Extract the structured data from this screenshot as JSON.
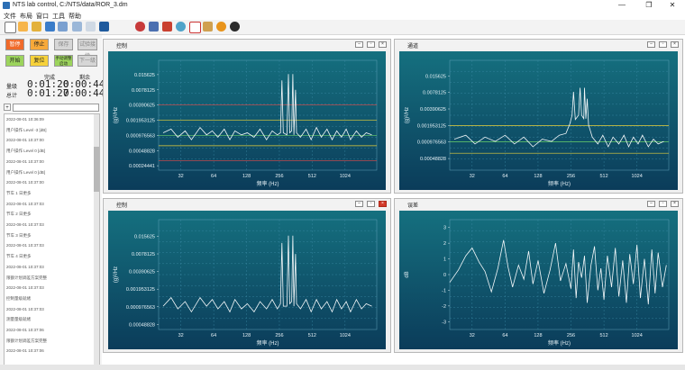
{
  "window": {
    "title": "NTS lab control, C:/NTS/data/ROR_3.dm",
    "buttons": [
      "—",
      "❐",
      "✕"
    ]
  },
  "menu": [
    "文件",
    "布局",
    "窗口",
    "工具",
    "帮助"
  ],
  "toolbar": {
    "icons": [
      "new-file-icon",
      "grid-icon",
      "open-folder-icon",
      "save-icon",
      "export-icon",
      "edit-icon",
      "signal-icon",
      "waveform-icon",
      "car-icon",
      "peak-icon",
      "hammer-icon",
      "zoom-icon",
      "off-icon",
      "profile-icon",
      "headset-icon",
      "stop-icon"
    ],
    "colors": {
      "accent": "#2c6fb5",
      "plot_top": "#15707f",
      "plot_bottom": "#0b3c5a"
    }
  },
  "controls": {
    "stop_label": "暂停",
    "exit_label": "停止",
    "save_label": "保存",
    "cont_label": "试验接续",
    "start_label": "开始",
    "reset_label": "复位",
    "manual_label": "手动调整启动",
    "next_label": "下一级",
    "done_label": "完成",
    "remain_label": "剩余",
    "level_label": "量级",
    "total_label": "总计",
    "level_done": "0:01:20",
    "level_remain": "0:00:44",
    "total_done": "0:01:27",
    "total_remain": "0:00:44"
  },
  "log": [
    {
      "time": "2022-08-01 10:36:09",
      "text": ""
    },
    {
      "time": "",
      "text": "用户操作 Level            -3 [dB]"
    },
    {
      "time": "2022-08-01 10:37:00",
      "text": ""
    },
    {
      "time": "",
      "text": "用户操作 Level            0 [dB]"
    },
    {
      "time": "2022-08-01 10:37:00",
      "text": ""
    },
    {
      "time": "",
      "text": "用户操作 Level            0 [dB]"
    },
    {
      "time": "2022-08-01 10:37:00",
      "text": ""
    },
    {
      "time": "",
      "text": "节车 1 日更多"
    },
    {
      "time": "2022-08-01 10:37:03",
      "text": ""
    },
    {
      "time": "",
      "text": "节车 2 日更多"
    },
    {
      "time": "2022-08-01 10:37:03",
      "text": ""
    },
    {
      "time": "",
      "text": "节车 3 日更多"
    },
    {
      "time": "2022-08-01 10:37:03",
      "text": ""
    },
    {
      "time": "",
      "text": "节车 4 日更多"
    },
    {
      "time": "2022-08-01 10:37:03",
      "text": ""
    },
    {
      "time": "",
      "text": "限额计划调差方案完整"
    },
    {
      "time": "2022-08-01 10:37:03",
      "text": ""
    },
    {
      "time": "",
      "text": "控制量级就绪"
    },
    {
      "time": "2022-08-01 10:37:03",
      "text": ""
    },
    {
      "time": "",
      "text": "测量量级就绪"
    },
    {
      "time": "2022-08-01 10:37:06",
      "text": ""
    },
    {
      "time": "",
      "text": "限额计划调差方案完整"
    },
    {
      "time": "2022-08-01 10:37:06",
      "text": ""
    }
  ],
  "panels": {
    "p1": {
      "title": "控制",
      "ylabel": "(g)²/Hz",
      "xlabel": "频率 (Hz)"
    },
    "p2": {
      "title": "通道",
      "ylabel": "(g)²/Hz",
      "xlabel": "频率 (Hz)"
    },
    "p3": {
      "title": "控制",
      "ylabel": "(g)²/Hz",
      "xlabel": "频率 (Hz)"
    },
    "p4": {
      "title": "误差",
      "ylabel": "dB",
      "xlabel": "频率 (Hz)"
    }
  },
  "chart_data": [
    {
      "type": "line",
      "title": "控制",
      "xlabel": "频率 (Hz)",
      "ylabel": "(g)²/Hz",
      "x_ticks": [
        "32",
        "64",
        "128",
        "256",
        "512",
        "1024"
      ],
      "x_tick_values": [
        32,
        64,
        128,
        256,
        512,
        1024
      ],
      "y_ticks": [
        "0.015625",
        "0.0078125",
        "0.00390625",
        "0.001953125",
        "0.000976563",
        "0.00048828",
        "0.00024441"
      ],
      "y_tick_values": [
        0.015625,
        0.0078125,
        0.00390625,
        0.001953125,
        0.000976563,
        0.00048828,
        0.00024441
      ],
      "xlim": [
        20,
        2000
      ],
      "ylim": [
        0.0002,
        0.03
      ],
      "xscale": "log",
      "yscale": "log",
      "lines": {
        "red": [
          0.0039,
          0.00031
        ],
        "yellow": [
          0.00195,
          0.00061
        ],
        "green": [
          0.00098
        ]
      },
      "peaks_x": [
        270,
        310,
        340,
        360
      ],
      "series": [
        {
          "values": [
            [
              22,
              0.0011
            ],
            [
              26,
              0.0013
            ],
            [
              30,
              0.0009
            ],
            [
              35,
              0.0012
            ],
            [
              40,
              0.0008
            ],
            [
              48,
              0.0014
            ],
            [
              55,
              0.001
            ],
            [
              62,
              0.0012
            ],
            [
              70,
              0.0009
            ],
            [
              80,
              0.0013
            ],
            [
              90,
              0.0008
            ],
            [
              100,
              0.0012
            ],
            [
              115,
              0.001
            ],
            [
              130,
              0.0011
            ],
            [
              150,
              0.0009
            ],
            [
              170,
              0.0013
            ],
            [
              195,
              0.0008
            ],
            [
              220,
              0.0012
            ],
            [
              245,
              0.001
            ],
            [
              262,
              0.0011
            ],
            [
              270,
              0.012
            ],
            [
              278,
              0.0011
            ],
            [
              300,
              0.001
            ],
            [
              310,
              0.016
            ],
            [
              318,
              0.0011
            ],
            [
              332,
              0.0012
            ],
            [
              340,
              0.016
            ],
            [
              348,
              0.001
            ],
            [
              360,
              0.0078
            ],
            [
              368,
              0.0011
            ],
            [
              400,
              0.0009
            ],
            [
              450,
              0.0013
            ],
            [
              500,
              0.0008
            ],
            [
              560,
              0.0014
            ],
            [
              620,
              0.0009
            ],
            [
              700,
              0.0013
            ],
            [
              780,
              0.0008
            ],
            [
              860,
              0.0012
            ],
            [
              950,
              0.0009
            ],
            [
              1050,
              0.0013
            ],
            [
              1150,
              0.0008
            ],
            [
              1300,
              0.0012
            ],
            [
              1450,
              0.0009
            ],
            [
              1600,
              0.0011
            ],
            [
              1800,
              0.001
            ]
          ]
        }
      ]
    },
    {
      "type": "line",
      "title": "通道",
      "xlabel": "频率 (Hz)",
      "ylabel": "(g)²/Hz",
      "x_ticks": [
        "32",
        "64",
        "128",
        "256",
        "512",
        "1024"
      ],
      "x_tick_values": [
        32,
        64,
        128,
        256,
        512,
        1024
      ],
      "y_ticks": [
        "0.015625",
        "0.0078125",
        "0.00390625",
        "0.001953125",
        "0.000976563",
        "0.00048828"
      ],
      "y_tick_values": [
        0.015625,
        0.0078125,
        0.00390625,
        0.001953125,
        0.000976563,
        0.00048828
      ],
      "xlim": [
        20,
        2000
      ],
      "ylim": [
        0.0003,
        0.03
      ],
      "xscale": "log",
      "yscale": "log",
      "lines": {
        "yellow": [
          0.00195,
          0.00061
        ],
        "green": [
          0.00098
        ]
      },
      "series": [
        {
          "values": [
            [
              22,
              0.0011
            ],
            [
              28,
              0.0013
            ],
            [
              34,
              0.0009
            ],
            [
              42,
              0.0012
            ],
            [
              52,
              0.001
            ],
            [
              64,
              0.0013
            ],
            [
              78,
              0.0009
            ],
            [
              95,
              0.0012
            ],
            [
              115,
              0.0008
            ],
            [
              140,
              0.0011
            ],
            [
              170,
              0.001
            ],
            [
              200,
              0.0013
            ],
            [
              230,
              0.0014
            ],
            [
              250,
              0.0021
            ],
            [
              262,
              0.003
            ],
            [
              270,
              0.008
            ],
            [
              280,
              0.0025
            ],
            [
              300,
              0.003
            ],
            [
              310,
              0.0095
            ],
            [
              320,
              0.003
            ],
            [
              335,
              0.0026
            ],
            [
              340,
              0.0095
            ],
            [
              350,
              0.0026
            ],
            [
              360,
              0.006
            ],
            [
              370,
              0.002
            ],
            [
              400,
              0.0012
            ],
            [
              450,
              0.0009
            ],
            [
              500,
              0.0013
            ],
            [
              560,
              0.0008
            ],
            [
              620,
              0.0012
            ],
            [
              700,
              0.0009
            ],
            [
              780,
              0.0013
            ],
            [
              860,
              0.0008
            ],
            [
              950,
              0.0012
            ],
            [
              1050,
              0.0009
            ],
            [
              1150,
              0.0013
            ],
            [
              1300,
              0.0008
            ],
            [
              1450,
              0.0011
            ],
            [
              1600,
              0.0009
            ],
            [
              1800,
              0.001
            ]
          ]
        }
      ]
    },
    {
      "type": "line",
      "title": "控制",
      "xlabel": "频率 (Hz)",
      "ylabel": "(g)²/Hz",
      "x_ticks": [
        "32",
        "64",
        "128",
        "256",
        "512",
        "1024"
      ],
      "x_tick_values": [
        32,
        64,
        128,
        256,
        512,
        1024
      ],
      "y_ticks": [
        "0.015625",
        "0.0078125",
        "0.00390625",
        "0.001953125",
        "0.000976563",
        "0.00048828"
      ],
      "y_tick_values": [
        0.015625,
        0.0078125,
        0.00390625,
        0.001953125,
        0.000976563,
        0.00048828
      ],
      "xlim": [
        20,
        2000
      ],
      "ylim": [
        0.0004,
        0.03
      ],
      "xscale": "log",
      "yscale": "log",
      "lines": {},
      "series": [
        {
          "values": [
            [
              22,
              0.001
            ],
            [
              26,
              0.0014
            ],
            [
              30,
              0.0009
            ],
            [
              35,
              0.0012
            ],
            [
              40,
              0.0008
            ],
            [
              48,
              0.0014
            ],
            [
              55,
              0.001
            ],
            [
              62,
              0.0013
            ],
            [
              70,
              0.0009
            ],
            [
              80,
              0.0012
            ],
            [
              90,
              0.0008
            ],
            [
              100,
              0.0013
            ],
            [
              115,
              0.0009
            ],
            [
              130,
              0.0011
            ],
            [
              150,
              0.0008
            ],
            [
              170,
              0.0012
            ],
            [
              195,
              0.0009
            ],
            [
              220,
              0.0013
            ],
            [
              245,
              0.0009
            ],
            [
              262,
              0.0011
            ],
            [
              270,
              0.012
            ],
            [
              278,
              0.001
            ],
            [
              300,
              0.001
            ],
            [
              310,
              0.016
            ],
            [
              318,
              0.0011
            ],
            [
              332,
              0.0012
            ],
            [
              340,
              0.016
            ],
            [
              348,
              0.001
            ],
            [
              360,
              0.0078
            ],
            [
              368,
              0.0011
            ],
            [
              400,
              0.0009
            ],
            [
              450,
              0.0013
            ],
            [
              500,
              0.0008
            ],
            [
              560,
              0.0013
            ],
            [
              620,
              0.0009
            ],
            [
              700,
              0.0012
            ],
            [
              780,
              0.0008
            ],
            [
              860,
              0.0013
            ],
            [
              950,
              0.0009
            ],
            [
              1050,
              0.0012
            ],
            [
              1150,
              0.0008
            ],
            [
              1300,
              0.0013
            ],
            [
              1450,
              0.0009
            ],
            [
              1600,
              0.0011
            ],
            [
              1800,
              0.001
            ]
          ]
        }
      ]
    },
    {
      "type": "line",
      "title": "误差",
      "xlabel": "频率 (Hz)",
      "ylabel": "dB",
      "x_ticks": [
        "32",
        "64",
        "128",
        "256",
        "512",
        "1024"
      ],
      "x_tick_values": [
        32,
        64,
        128,
        256,
        512,
        1024
      ],
      "y_ticks": [
        "3",
        "2",
        "1",
        "0",
        "-1",
        "-2",
        "-3"
      ],
      "y_tick_values": [
        3,
        2,
        1,
        0,
        -1,
        -2,
        -3
      ],
      "xlim": [
        20,
        2000
      ],
      "ylim": [
        -3.5,
        3.5
      ],
      "xscale": "log",
      "yscale": "linear",
      "lines": {},
      "series": [
        {
          "values": [
            [
              20,
              -0.5
            ],
            [
              24,
              0.3
            ],
            [
              28,
              1.2
            ],
            [
              32,
              1.7
            ],
            [
              37,
              0.8
            ],
            [
              42,
              0.2
            ],
            [
              48,
              -1.1
            ],
            [
              55,
              0.4
            ],
            [
              62,
              2.2
            ],
            [
              68,
              0.5
            ],
            [
              75,
              -0.8
            ],
            [
              85,
              0.6
            ],
            [
              95,
              -0.3
            ],
            [
              105,
              1.5
            ],
            [
              115,
              -0.6
            ],
            [
              128,
              0.9
            ],
            [
              145,
              -1.2
            ],
            [
              165,
              0.3
            ],
            [
              185,
              2.0
            ],
            [
              205,
              -0.4
            ],
            [
              230,
              0.7
            ],
            [
              256,
              -0.9
            ],
            [
              270,
              1.6
            ],
            [
              285,
              -1.5
            ],
            [
              300,
              0.8
            ],
            [
              320,
              -0.2
            ],
            [
              340,
              1.2
            ],
            [
              360,
              -1.8
            ],
            [
              390,
              0.6
            ],
            [
              420,
              1.8
            ],
            [
              450,
              -1.0
            ],
            [
              480,
              0.4
            ],
            [
              512,
              -1.6
            ],
            [
              550,
              1.2
            ],
            [
              600,
              -0.8
            ],
            [
              650,
              1.7
            ],
            [
              700,
              -1.4
            ],
            [
              760,
              0.9
            ],
            [
              820,
              -1.8
            ],
            [
              880,
              1.3
            ],
            [
              950,
              -0.6
            ],
            [
              1024,
              1.9
            ],
            [
              1100,
              -1.5
            ],
            [
              1200,
              1.0
            ],
            [
              1300,
              -1.9
            ],
            [
              1400,
              1.6
            ],
            [
              1500,
              -1.2
            ],
            [
              1600,
              1.4
            ],
            [
              1750,
              -0.8
            ],
            [
              1900,
              0.6
            ]
          ]
        }
      ]
    }
  ]
}
